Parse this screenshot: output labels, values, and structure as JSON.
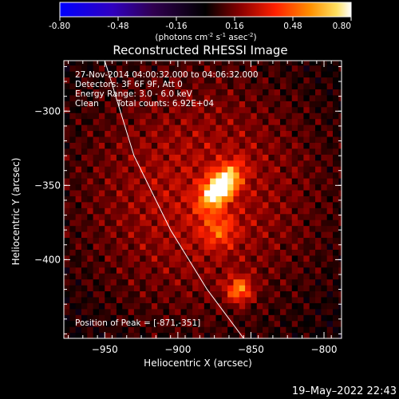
{
  "chart_data": {
    "type": "heatmap",
    "title": "Reconstructed RHESSI Image",
    "colorbar": {
      "ticks": [
        "-0.80",
        "-0.48",
        "-0.16",
        "0.16",
        "0.48",
        "0.80"
      ],
      "label_prefix": "(photons cm",
      "label_sup1": "-2",
      "label_mid": " s",
      "label_sup2": "-1",
      "label_mid2": " asec",
      "label_sup3": "-2",
      "label_suffix": ")",
      "range": [
        -0.8,
        0.8
      ]
    },
    "xlabel": "Heliocentric X (arcsec)",
    "ylabel": "Heliocentric Y (arcsec)",
    "xlim": [
      -978,
      -788
    ],
    "ylim": [
      -453,
      -266
    ],
    "xticks": [
      {
        "value": -950,
        "label": "−950"
      },
      {
        "value": -900,
        "label": "−900"
      },
      {
        "value": -850,
        "label": "−850"
      },
      {
        "value": -800,
        "label": "−800"
      }
    ],
    "yticks": [
      {
        "value": -300,
        "label": "−300"
      },
      {
        "value": -350,
        "label": "−350"
      },
      {
        "value": -400,
        "label": "−400"
      }
    ],
    "annotations": {
      "time": "27-Nov-2014 04:00:32.000 to 04:06:32.000",
      "detectors": "Detectors: 3F 6F 9F, Att 0",
      "energy": "Energy Range: 3.0 - 6.0 keV",
      "clean": "Clean",
      "counts": "Total counts: 6.92E+04",
      "peak": "Position of Peak = [-871,-351]"
    },
    "peak": {
      "x": -871,
      "y": -351
    },
    "sources": [
      {
        "x": -871,
        "y": -351,
        "amp": 0.8
      },
      {
        "x": -858,
        "y": -420,
        "amp": 0.42
      },
      {
        "x": -872,
        "y": -380,
        "amp": 0.25
      }
    ],
    "limb": [
      {
        "x": -950,
        "y": -266
      },
      {
        "x": -930,
        "y": -330
      },
      {
        "x": -905,
        "y": -380
      },
      {
        "x": -880,
        "y": -420
      },
      {
        "x": -855,
        "y": -453
      }
    ]
  },
  "footer": {
    "timestamp": "19–May–2022 22:43"
  },
  "colors": {
    "background": "#000000",
    "text": "#ffffff"
  }
}
